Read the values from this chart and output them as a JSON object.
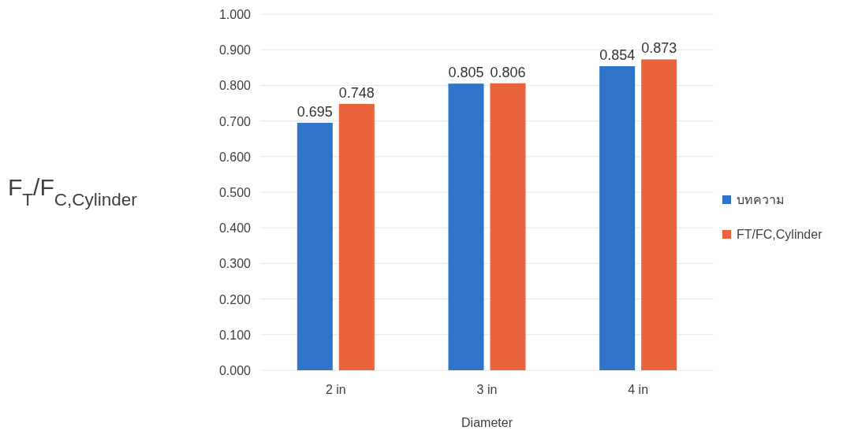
{
  "chart_data": {
    "type": "bar",
    "xlabel": "Diameter",
    "ylabel": "F$_{T}$/F$_{C,Cylinder}$",
    "categories": [
      "2 in",
      "3 in",
      "4 in"
    ],
    "series": [
      {
        "name": "บทความ",
        "color": "#2f74c8",
        "values": [
          0.695,
          0.805,
          0.854
        ]
      },
      {
        "name": "FT/FC,Cylinder",
        "color": "#e9643c",
        "values": [
          0.748,
          0.806,
          0.873
        ]
      }
    ],
    "ylim": [
      0,
      1
    ],
    "yticks": [
      {
        "value": 0,
        "label": "0.000"
      },
      {
        "value": 0.1,
        "label": "0.100"
      },
      {
        "value": 0.2,
        "label": "0.200"
      },
      {
        "value": 0.3,
        "label": "0.300"
      },
      {
        "value": 0.4,
        "label": "0.400"
      },
      {
        "value": 0.5,
        "label": "0.500"
      },
      {
        "value": 0.6,
        "label": "0.600"
      },
      {
        "value": 0.7,
        "label": "0.700"
      },
      {
        "value": 0.8,
        "label": "0.800"
      },
      {
        "value": 0.9,
        "label": "0.900"
      },
      {
        "value": 1,
        "label": "1.000"
      }
    ],
    "grid": "y",
    "legend": "right",
    "data_labels": true
  }
}
